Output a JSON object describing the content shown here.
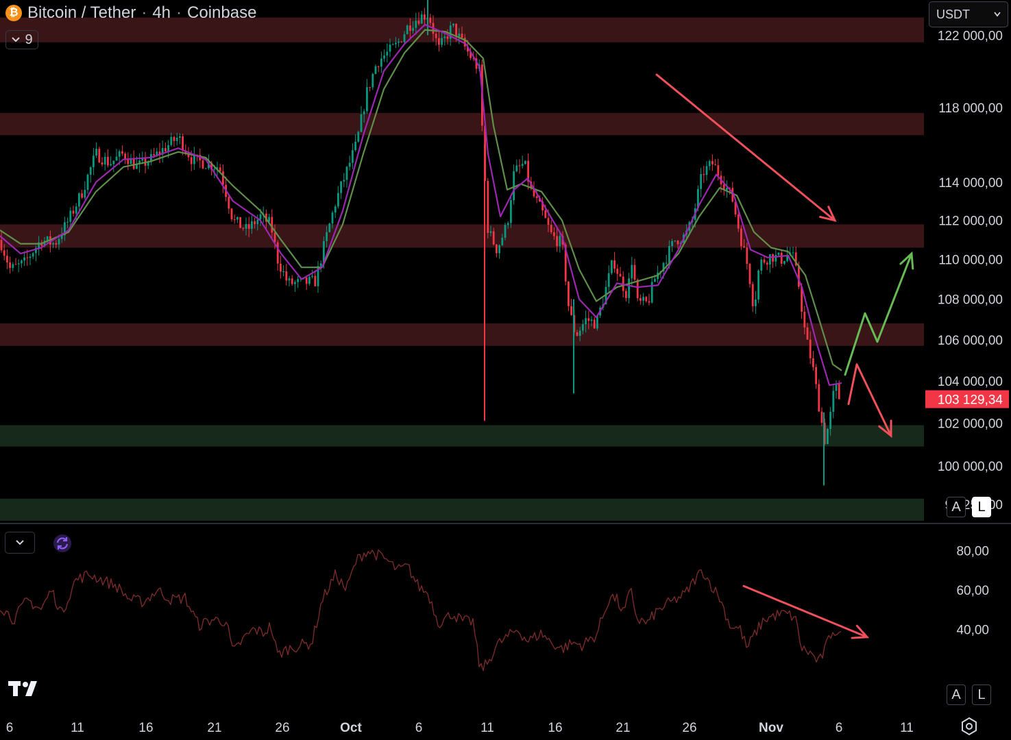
{
  "header": {
    "symbol": "Bitcoin / Tether",
    "interval": "4h",
    "exchange": "Coinbase",
    "separator": "·",
    "icon": "bitcoin-icon",
    "indicator_count": "9"
  },
  "currency_select": {
    "value": "USDT"
  },
  "price_axis": {
    "labels": [
      "122 000,00",
      "118 000,00",
      "114 000,00",
      "112 000,00",
      "110 000,00",
      "108 000,00",
      "106 000,00",
      "104 000,00",
      "102 000,00",
      "100 000,00",
      "98 250,00"
    ],
    "current_price": "103 129,34",
    "current_price_color": "#f23645"
  },
  "scale_buttons": {
    "auto": "A",
    "log": "L"
  },
  "rsi_axis": {
    "labels": [
      "80,00",
      "60,00",
      "40,00"
    ]
  },
  "time_axis": {
    "labels": [
      "6",
      "11",
      "16",
      "21",
      "26",
      "Oct",
      "6",
      "11",
      "16",
      "21",
      "26",
      "Nov",
      "6",
      "11"
    ]
  },
  "colors": {
    "resistance_zone": "#3a1518",
    "support_zone": "#16291a",
    "candle_up": "#089981",
    "candle_down": "#f23645",
    "ema_fast": "#9c27b0",
    "ema_slow": "#5f8f4a",
    "rsi_line": "#7a2a2a",
    "arrow_red": "#f0505a",
    "arrow_green": "#66bb55"
  },
  "chart_data": {
    "type": "candlestick",
    "instrument": "BTC/USDT",
    "timeframe": "4h",
    "y_range": [
      97500,
      124000
    ],
    "zones": {
      "resistance": [
        [
          121600,
          123000
        ],
        [
          116500,
          117700
        ],
        [
          110600,
          111800
        ],
        [
          105700,
          106800
        ]
      ],
      "support": [
        [
          100900,
          101900
        ],
        [
          97500,
          98500
        ]
      ]
    },
    "price_path": [
      [
        0,
        111000
      ],
      [
        15,
        109500
      ],
      [
        35,
        109800
      ],
      [
        60,
        111000
      ],
      [
        80,
        110800
      ],
      [
        100,
        112000
      ],
      [
        120,
        113500
      ],
      [
        140,
        115500
      ],
      [
        160,
        115000
      ],
      [
        180,
        115500
      ],
      [
        200,
        114800
      ],
      [
        220,
        115200
      ],
      [
        240,
        115800
      ],
      [
        260,
        116400
      ],
      [
        280,
        115200
      ],
      [
        300,
        115000
      ],
      [
        320,
        114800
      ],
      [
        340,
        112000
      ],
      [
        360,
        111500
      ],
      [
        380,
        112200
      ],
      [
        395,
        111800
      ],
      [
        405,
        110000
      ],
      [
        420,
        108800
      ],
      [
        440,
        108800
      ],
      [
        460,
        108900
      ],
      [
        475,
        111000
      ],
      [
        490,
        113000
      ],
      [
        505,
        114500
      ],
      [
        520,
        116000
      ],
      [
        535,
        118800
      ],
      [
        550,
        120500
      ],
      [
        565,
        121000
      ],
      [
        580,
        121500
      ],
      [
        595,
        122500
      ],
      [
        610,
        123000
      ],
      [
        625,
        123200
      ],
      [
        640,
        121200
      ],
      [
        660,
        122500
      ],
      [
        680,
        121200
      ],
      [
        700,
        120000
      ],
      [
        705,
        115500
      ],
      [
        712,
        111500
      ],
      [
        725,
        110500
      ],
      [
        740,
        111800
      ],
      [
        750,
        114500
      ],
      [
        765,
        115000
      ],
      [
        775,
        113500
      ],
      [
        790,
        112500
      ],
      [
        805,
        111200
      ],
      [
        820,
        110800
      ],
      [
        830,
        107500
      ],
      [
        840,
        106200
      ],
      [
        855,
        107000
      ],
      [
        870,
        106800
      ],
      [
        880,
        108000
      ],
      [
        895,
        110000
      ],
      [
        905,
        109000
      ],
      [
        915,
        108200
      ],
      [
        922,
        110000
      ],
      [
        930,
        107800
      ],
      [
        945,
        107800
      ],
      [
        955,
        109000
      ],
      [
        970,
        110000
      ],
      [
        985,
        111000
      ],
      [
        1000,
        111200
      ],
      [
        1010,
        112000
      ],
      [
        1025,
        114500
      ],
      [
        1040,
        115000
      ],
      [
        1055,
        114000
      ],
      [
        1068,
        113200
      ],
      [
        1080,
        111200
      ],
      [
        1092,
        109500
      ],
      [
        1100,
        107500
      ],
      [
        1108,
        109800
      ],
      [
        1125,
        110200
      ],
      [
        1140,
        110000
      ],
      [
        1155,
        110400
      ],
      [
        1165,
        108800
      ],
      [
        1175,
        106200
      ],
      [
        1185,
        104800
      ],
      [
        1195,
        102800
      ],
      [
        1203,
        101200
      ],
      [
        1210,
        102000
      ],
      [
        1218,
        103800
      ],
      [
        1228,
        103129
      ]
    ],
    "ema_fast": [
      [
        0,
        111200
      ],
      [
        30,
        110300
      ],
      [
        60,
        110600
      ],
      [
        100,
        111500
      ],
      [
        140,
        114000
      ],
      [
        180,
        115200
      ],
      [
        220,
        115300
      ],
      [
        260,
        115800
      ],
      [
        300,
        115200
      ],
      [
        340,
        113000
      ],
      [
        380,
        112000
      ],
      [
        410,
        110300
      ],
      [
        440,
        109000
      ],
      [
        470,
        109600
      ],
      [
        500,
        112500
      ],
      [
        530,
        116500
      ],
      [
        560,
        120000
      ],
      [
        590,
        121500
      ],
      [
        620,
        122600
      ],
      [
        650,
        122100
      ],
      [
        680,
        121500
      ],
      [
        700,
        120200
      ],
      [
        712,
        115500
      ],
      [
        730,
        112200
      ],
      [
        750,
        113600
      ],
      [
        770,
        114200
      ],
      [
        790,
        113000
      ],
      [
        820,
        111200
      ],
      [
        845,
        108000
      ],
      [
        870,
        107100
      ],
      [
        900,
        108800
      ],
      [
        930,
        108600
      ],
      [
        960,
        108700
      ],
      [
        990,
        110500
      ],
      [
        1020,
        112800
      ],
      [
        1045,
        114400
      ],
      [
        1070,
        113400
      ],
      [
        1095,
        110500
      ],
      [
        1120,
        110100
      ],
      [
        1150,
        110200
      ],
      [
        1170,
        108600
      ],
      [
        1190,
        106000
      ],
      [
        1210,
        103800
      ],
      [
        1228,
        103900
      ]
    ],
    "ema_slow": [
      [
        0,
        111500
      ],
      [
        30,
        110800
      ],
      [
        60,
        110800
      ],
      [
        100,
        111400
      ],
      [
        140,
        113500
      ],
      [
        180,
        114800
      ],
      [
        220,
        115100
      ],
      [
        260,
        115600
      ],
      [
        300,
        115300
      ],
      [
        340,
        113800
      ],
      [
        380,
        112500
      ],
      [
        410,
        111000
      ],
      [
        440,
        109600
      ],
      [
        470,
        109600
      ],
      [
        500,
        111800
      ],
      [
        530,
        115500
      ],
      [
        560,
        119000
      ],
      [
        590,
        121000
      ],
      [
        620,
        122300
      ],
      [
        650,
        122200
      ],
      [
        680,
        121700
      ],
      [
        705,
        120700
      ],
      [
        720,
        117000
      ],
      [
        740,
        113600
      ],
      [
        760,
        113900
      ],
      [
        790,
        113500
      ],
      [
        820,
        112000
      ],
      [
        845,
        109500
      ],
      [
        870,
        107900
      ],
      [
        900,
        108600
      ],
      [
        930,
        108900
      ],
      [
        960,
        109200
      ],
      [
        990,
        110300
      ],
      [
        1020,
        112200
      ],
      [
        1050,
        113700
      ],
      [
        1075,
        113300
      ],
      [
        1100,
        111400
      ],
      [
        1125,
        110600
      ],
      [
        1150,
        110400
      ],
      [
        1175,
        109200
      ],
      [
        1195,
        107000
      ],
      [
        1215,
        104800
      ],
      [
        1228,
        104500
      ]
    ],
    "rsi": {
      "y_range": [
        15,
        90
      ],
      "levels_shown": [
        80,
        60,
        40
      ],
      "series": [
        [
          0,
          52
        ],
        [
          20,
          45
        ],
        [
          40,
          55
        ],
        [
          60,
          50
        ],
        [
          75,
          60
        ],
        [
          90,
          48
        ],
        [
          110,
          65
        ],
        [
          130,
          68
        ],
        [
          150,
          65
        ],
        [
          170,
          62
        ],
        [
          190,
          55
        ],
        [
          210,
          54
        ],
        [
          230,
          60
        ],
        [
          250,
          55
        ],
        [
          270,
          56
        ],
        [
          290,
          42
        ],
        [
          310,
          45
        ],
        [
          330,
          44
        ],
        [
          340,
          28
        ],
        [
          355,
          35
        ],
        [
          370,
          40
        ],
        [
          385,
          38
        ],
        [
          395,
          42
        ],
        [
          405,
          27
        ],
        [
          420,
          30
        ],
        [
          440,
          32
        ],
        [
          455,
          33
        ],
        [
          470,
          55
        ],
        [
          490,
          68
        ],
        [
          505,
          60
        ],
        [
          520,
          75
        ],
        [
          535,
          80
        ],
        [
          550,
          78
        ],
        [
          565,
          75
        ],
        [
          580,
          70
        ],
        [
          595,
          72
        ],
        [
          610,
          62
        ],
        [
          625,
          58
        ],
        [
          640,
          43
        ],
        [
          660,
          48
        ],
        [
          675,
          44
        ],
        [
          690,
          44
        ],
        [
          700,
          20
        ],
        [
          710,
          22
        ],
        [
          725,
          32
        ],
        [
          740,
          36
        ],
        [
          755,
          40
        ],
        [
          770,
          34
        ],
        [
          790,
          38
        ],
        [
          805,
          33
        ],
        [
          820,
          30
        ],
        [
          835,
          33
        ],
        [
          850,
          32
        ],
        [
          870,
          37
        ],
        [
          890,
          57
        ],
        [
          900,
          55
        ],
        [
          910,
          48
        ],
        [
          920,
          60
        ],
        [
          930,
          45
        ],
        [
          945,
          43
        ],
        [
          955,
          48
        ],
        [
          970,
          52
        ],
        [
          985,
          55
        ],
        [
          1000,
          58
        ],
        [
          1015,
          66
        ],
        [
          1025,
          70
        ],
        [
          1035,
          64
        ],
        [
          1050,
          56
        ],
        [
          1065,
          42
        ],
        [
          1080,
          40
        ],
        [
          1090,
          30
        ],
        [
          1100,
          37
        ],
        [
          1115,
          45
        ],
        [
          1130,
          47
        ],
        [
          1145,
          48
        ],
        [
          1160,
          46
        ],
        [
          1170,
          30
        ],
        [
          1182,
          28
        ],
        [
          1195,
          23
        ],
        [
          1205,
          31
        ],
        [
          1215,
          40
        ],
        [
          1228,
          36
        ]
      ]
    },
    "drawn_arrows": [
      {
        "panel": "price",
        "color": "red",
        "from": [
          958,
          119800
        ],
        "to": [
          1218,
          112000
        ]
      },
      {
        "panel": "price",
        "color": "green",
        "path": [
          [
            1233,
            104300
          ],
          [
            1262,
            107300
          ],
          [
            1280,
            105900
          ],
          [
            1330,
            110300
          ]
        ]
      },
      {
        "panel": "price",
        "color": "red",
        "path": [
          [
            1238,
            102900
          ],
          [
            1250,
            104800
          ],
          [
            1300,
            101400
          ]
        ]
      },
      {
        "panel": "rsi",
        "color": "red",
        "from": [
          1085,
          62
        ],
        "to": [
          1265,
          36
        ]
      }
    ]
  }
}
